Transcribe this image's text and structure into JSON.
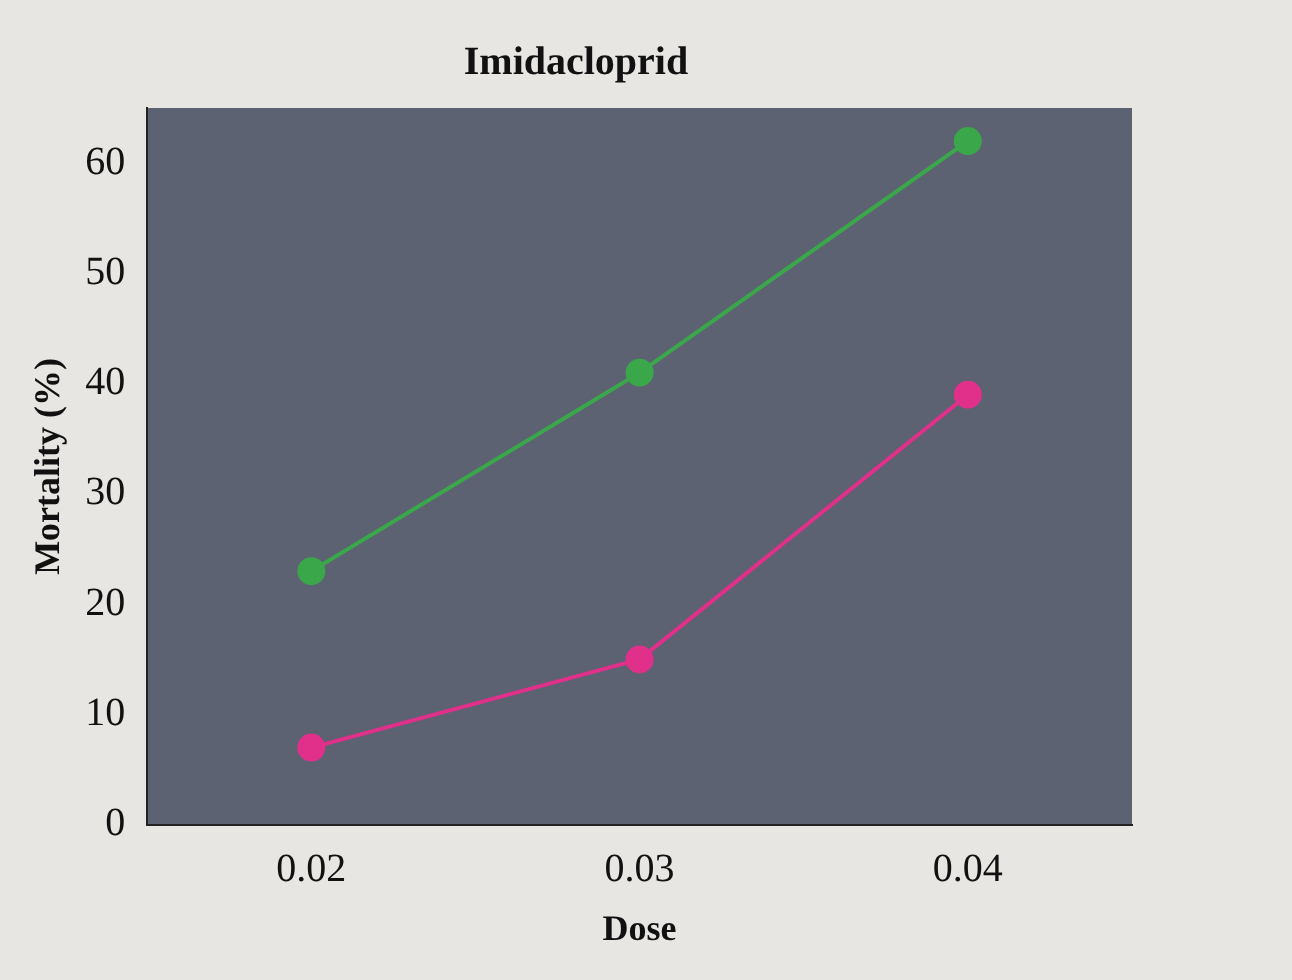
{
  "chart_data": {
    "type": "line",
    "title": "Imidacloprid",
    "xlabel": "Dose",
    "ylabel": "Mortality (%)",
    "categories": [
      "0.02",
      "0.03",
      "0.04"
    ],
    "series": [
      {
        "color": "#3aa84a",
        "values": [
          23,
          41,
          62
        ]
      },
      {
        "color": "#e0308a",
        "values": [
          7,
          15,
          39
        ]
      }
    ],
    "ylim": [
      0,
      65
    ],
    "yticks": [
      0,
      10,
      20,
      30,
      40,
      50,
      60
    ],
    "grid": false,
    "legend": false,
    "marker": "circle",
    "line_style": "solid"
  }
}
